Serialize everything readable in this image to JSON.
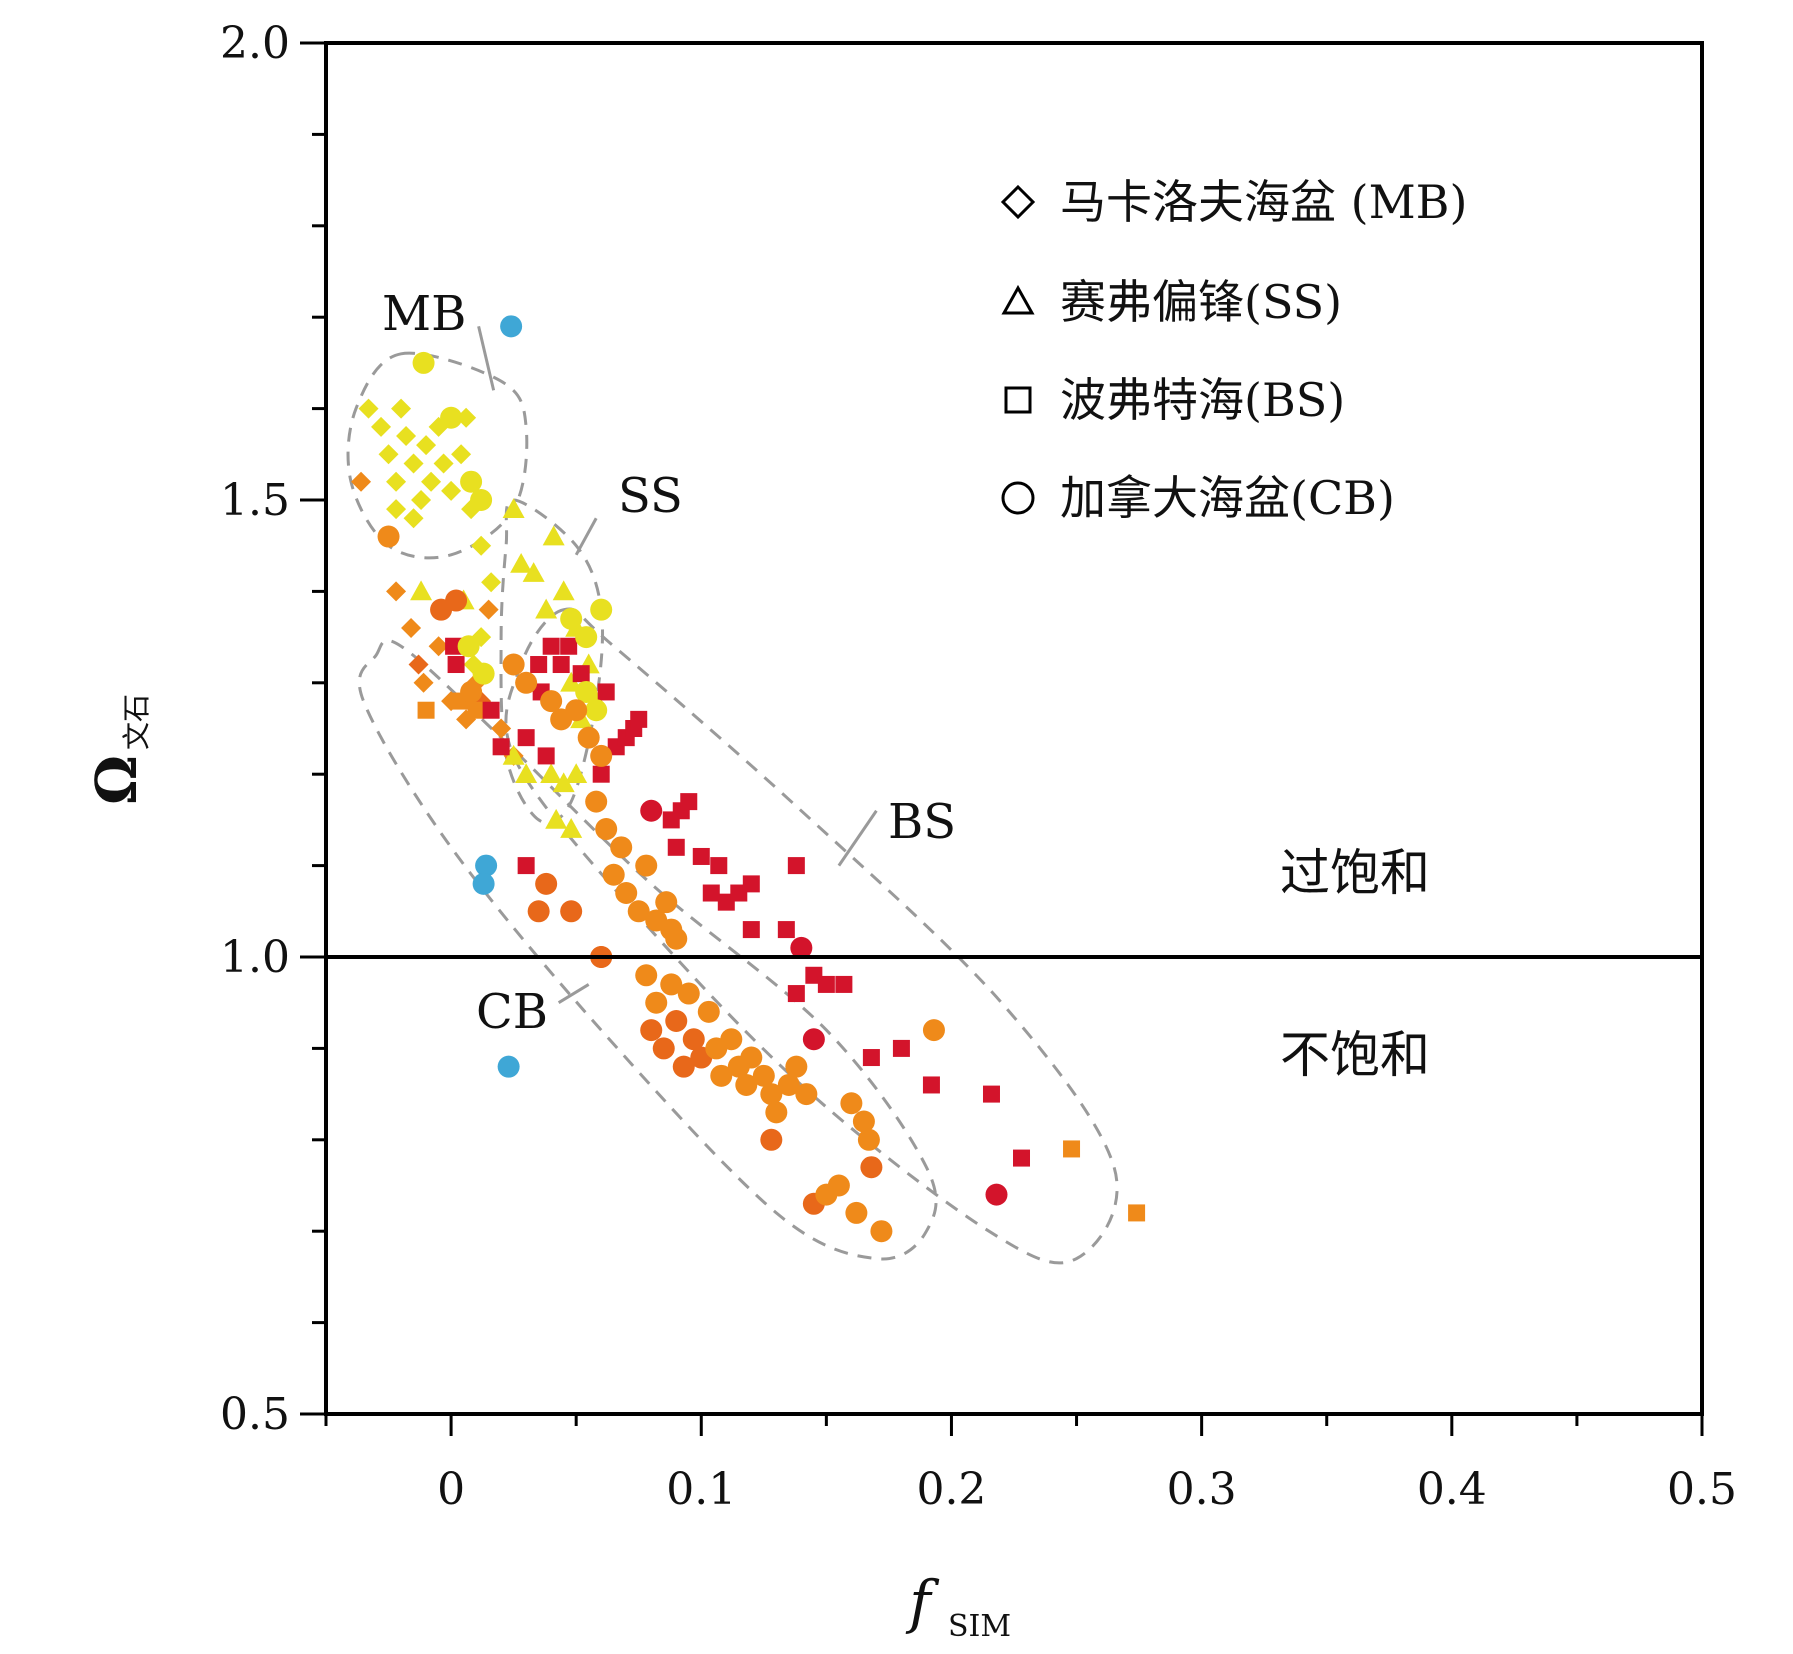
{
  "chart_data": {
    "type": "scatter",
    "xlabel": "f",
    "xlabel_sub": "SIM",
    "ylabel": "Ω",
    "ylabel_sub": "文石",
    "xlim": [
      -0.05,
      0.5
    ],
    "ylim": [
      0.5,
      2.0
    ],
    "xticks": [
      "0",
      "0.1",
      "0.2",
      "0.3",
      "0.4",
      "0.5"
    ],
    "xtick_values": [
      0,
      0.1,
      0.2,
      0.3,
      0.4,
      0.5
    ],
    "yticks": [
      "0.5",
      "1.0",
      "1.5",
      "2.0"
    ],
    "ytick_values": [
      0.5,
      1.0,
      1.5,
      2.0
    ],
    "reference_line": 1.0,
    "region_labels": {
      "above": "过饱和",
      "below": "不饱和"
    },
    "group_labels": {
      "MB": "MB",
      "SS": "SS",
      "BS": "BS",
      "CB": "CB"
    },
    "legend": [
      {
        "marker": "diamond",
        "label": "马卡洛夫海盆 (MB)"
      },
      {
        "marker": "triangle",
        "label": "赛弗偏锋(SS)"
      },
      {
        "marker": "square",
        "label": "波弗特海(BS)"
      },
      {
        "marker": "circle",
        "label": "加拿大海盆(CB)"
      }
    ],
    "colors": {
      "yellow": "#e8e020",
      "light_orange": "#f5a623",
      "orange": "#ef8a1a",
      "dark_orange": "#e8681a",
      "red": "#d3142b",
      "blue": "#3fa7d6"
    },
    "series": [
      {
        "name": "MB",
        "marker": "diamond",
        "points": [
          [
            -0.033,
            1.6,
            "yellow"
          ],
          [
            -0.028,
            1.58,
            "yellow"
          ],
          [
            -0.025,
            1.55,
            "yellow"
          ],
          [
            -0.022,
            1.52,
            "yellow"
          ],
          [
            -0.02,
            1.6,
            "yellow"
          ],
          [
            -0.018,
            1.57,
            "yellow"
          ],
          [
            -0.015,
            1.54,
            "yellow"
          ],
          [
            -0.012,
            1.5,
            "yellow"
          ],
          [
            -0.01,
            1.56,
            "yellow"
          ],
          [
            -0.008,
            1.52,
            "yellow"
          ],
          [
            -0.005,
            1.58,
            "yellow"
          ],
          [
            -0.003,
            1.54,
            "yellow"
          ],
          [
            0.0,
            1.51,
            "yellow"
          ],
          [
            0.004,
            1.55,
            "yellow"
          ],
          [
            -0.022,
            1.49,
            "yellow"
          ],
          [
            -0.015,
            1.48,
            "yellow"
          ],
          [
            0.006,
            1.59,
            "yellow"
          ],
          [
            0.008,
            1.49,
            "yellow"
          ],
          [
            0.012,
            1.45,
            "yellow"
          ],
          [
            0.016,
            1.41,
            "yellow"
          ],
          [
            -0.036,
            1.52,
            "orange"
          ],
          [
            -0.022,
            1.4,
            "orange"
          ],
          [
            -0.016,
            1.36,
            "orange"
          ],
          [
            -0.013,
            1.32,
            "dark_orange"
          ],
          [
            -0.011,
            1.3,
            "orange"
          ],
          [
            -0.005,
            1.34,
            "orange"
          ],
          [
            0.0,
            1.28,
            "orange"
          ],
          [
            0.006,
            1.26,
            "orange"
          ],
          [
            0.01,
            1.3,
            "orange"
          ],
          [
            0.015,
            1.38,
            "orange"
          ],
          [
            0.02,
            1.25,
            "orange"
          ],
          [
            0.025,
            1.22,
            "orange"
          ],
          [
            0.012,
            1.28,
            "dark_orange"
          ],
          [
            0.009,
            1.32,
            "yellow"
          ],
          [
            0.012,
            1.35,
            "yellow"
          ]
        ]
      },
      {
        "name": "SS",
        "marker": "triangle",
        "points": [
          [
            0.025,
            1.49,
            "yellow"
          ],
          [
            0.041,
            1.46,
            "yellow"
          ],
          [
            0.028,
            1.43,
            "yellow"
          ],
          [
            0.033,
            1.42,
            "yellow"
          ],
          [
            0.038,
            1.38,
            "yellow"
          ],
          [
            0.045,
            1.4,
            "yellow"
          ],
          [
            0.05,
            1.36,
            "yellow"
          ],
          [
            0.055,
            1.32,
            "yellow"
          ],
          [
            0.058,
            1.28,
            "yellow"
          ],
          [
            0.048,
            1.3,
            "yellow"
          ],
          [
            0.052,
            1.26,
            "yellow"
          ],
          [
            0.05,
            1.2,
            "yellow"
          ],
          [
            0.045,
            1.19,
            "yellow"
          ],
          [
            0.04,
            1.2,
            "yellow"
          ],
          [
            0.03,
            1.2,
            "yellow"
          ],
          [
            0.025,
            1.22,
            "yellow"
          ],
          [
            0.042,
            1.15,
            "yellow"
          ],
          [
            0.048,
            1.14,
            "yellow"
          ],
          [
            -0.012,
            1.4,
            "yellow"
          ],
          [
            0.005,
            1.39,
            "yellow"
          ]
        ]
      },
      {
        "name": "BS",
        "marker": "square",
        "points": [
          [
            -0.01,
            1.27,
            "orange"
          ],
          [
            0.004,
            1.28,
            "orange"
          ],
          [
            0.01,
            1.27,
            "orange"
          ],
          [
            0.002,
            1.32,
            "red"
          ],
          [
            0.001,
            1.34,
            "red"
          ],
          [
            0.016,
            1.27,
            "red"
          ],
          [
            0.02,
            1.23,
            "red"
          ],
          [
            0.03,
            1.24,
            "red"
          ],
          [
            0.03,
            1.1,
            "red"
          ],
          [
            0.035,
            1.32,
            "red"
          ],
          [
            0.036,
            1.29,
            "red"
          ],
          [
            0.038,
            1.22,
            "red"
          ],
          [
            0.04,
            1.34,
            "red"
          ],
          [
            0.044,
            1.32,
            "red"
          ],
          [
            0.047,
            1.34,
            "red"
          ],
          [
            0.052,
            1.31,
            "red"
          ],
          [
            0.06,
            1.2,
            "red"
          ],
          [
            0.062,
            1.29,
            "red"
          ],
          [
            0.066,
            1.23,
            "red"
          ],
          [
            0.07,
            1.24,
            "red"
          ],
          [
            0.073,
            1.25,
            "red"
          ],
          [
            0.075,
            1.26,
            "red"
          ],
          [
            0.088,
            1.15,
            "red"
          ],
          [
            0.09,
            1.12,
            "red"
          ],
          [
            0.092,
            1.16,
            "red"
          ],
          [
            0.095,
            1.17,
            "red"
          ],
          [
            0.1,
            1.11,
            "red"
          ],
          [
            0.104,
            1.07,
            "red"
          ],
          [
            0.107,
            1.1,
            "red"
          ],
          [
            0.11,
            1.06,
            "red"
          ],
          [
            0.115,
            1.07,
            "red"
          ],
          [
            0.12,
            1.03,
            "red"
          ],
          [
            0.12,
            1.08,
            "red"
          ],
          [
            0.134,
            1.03,
            "red"
          ],
          [
            0.138,
            1.1,
            "red"
          ],
          [
            0.138,
            0.96,
            "red"
          ],
          [
            0.145,
            0.98,
            "red"
          ],
          [
            0.15,
            0.97,
            "red"
          ],
          [
            0.157,
            0.97,
            "red"
          ],
          [
            0.168,
            0.89,
            "red"
          ],
          [
            0.18,
            0.9,
            "red"
          ],
          [
            0.192,
            0.86,
            "red"
          ],
          [
            0.216,
            0.85,
            "red"
          ],
          [
            0.228,
            0.78,
            "red"
          ],
          [
            0.248,
            0.79,
            "orange"
          ],
          [
            0.274,
            0.72,
            "orange"
          ]
        ]
      },
      {
        "name": "CB",
        "marker": "circle",
        "points": [
          [
            0.024,
            1.69,
            "blue"
          ],
          [
            0.014,
            1.1,
            "blue"
          ],
          [
            0.013,
            1.08,
            "blue"
          ],
          [
            0.023,
            0.88,
            "blue"
          ],
          [
            -0.011,
            1.65,
            "yellow"
          ],
          [
            0.0,
            1.59,
            "yellow"
          ],
          [
            0.008,
            1.52,
            "yellow"
          ],
          [
            0.012,
            1.5,
            "yellow"
          ],
          [
            0.054,
            1.35,
            "yellow"
          ],
          [
            0.06,
            1.38,
            "yellow"
          ],
          [
            0.048,
            1.37,
            "yellow"
          ],
          [
            0.054,
            1.29,
            "yellow"
          ],
          [
            0.058,
            1.27,
            "yellow"
          ],
          [
            0.007,
            1.34,
            "yellow"
          ],
          [
            0.013,
            1.31,
            "yellow"
          ],
          [
            -0.025,
            1.46,
            "orange"
          ],
          [
            0.002,
            1.39,
            "dark_orange"
          ],
          [
            -0.004,
            1.38,
            "dark_orange"
          ],
          [
            0.008,
            1.29,
            "orange"
          ],
          [
            0.025,
            1.32,
            "orange"
          ],
          [
            0.03,
            1.3,
            "orange"
          ],
          [
            0.04,
            1.28,
            "orange"
          ],
          [
            0.044,
            1.26,
            "orange"
          ],
          [
            0.05,
            1.27,
            "orange"
          ],
          [
            0.055,
            1.24,
            "orange"
          ],
          [
            0.06,
            1.22,
            "orange"
          ],
          [
            0.058,
            1.17,
            "orange"
          ],
          [
            0.062,
            1.14,
            "orange"
          ],
          [
            0.068,
            1.12,
            "orange"
          ],
          [
            0.065,
            1.09,
            "orange"
          ],
          [
            0.07,
            1.07,
            "orange"
          ],
          [
            0.075,
            1.05,
            "orange"
          ],
          [
            0.078,
            1.1,
            "orange"
          ],
          [
            0.082,
            1.04,
            "orange"
          ],
          [
            0.086,
            1.06,
            "orange"
          ],
          [
            0.088,
            1.03,
            "orange"
          ],
          [
            0.09,
            1.02,
            "orange"
          ],
          [
            0.038,
            1.08,
            "dark_orange"
          ],
          [
            0.035,
            1.05,
            "dark_orange"
          ],
          [
            0.048,
            1.05,
            "dark_orange"
          ],
          [
            0.06,
            1.0,
            "dark_orange"
          ],
          [
            0.078,
            0.98,
            "orange"
          ],
          [
            0.082,
            0.95,
            "orange"
          ],
          [
            0.088,
            0.97,
            "orange"
          ],
          [
            0.095,
            0.96,
            "orange"
          ],
          [
            0.08,
            0.92,
            "dark_orange"
          ],
          [
            0.085,
            0.9,
            "dark_orange"
          ],
          [
            0.09,
            0.93,
            "dark_orange"
          ],
          [
            0.093,
            0.88,
            "dark_orange"
          ],
          [
            0.097,
            0.91,
            "dark_orange"
          ],
          [
            0.1,
            0.89,
            "dark_orange"
          ],
          [
            0.103,
            0.94,
            "orange"
          ],
          [
            0.106,
            0.9,
            "orange"
          ],
          [
            0.108,
            0.87,
            "orange"
          ],
          [
            0.112,
            0.91,
            "orange"
          ],
          [
            0.115,
            0.88,
            "orange"
          ],
          [
            0.118,
            0.86,
            "orange"
          ],
          [
            0.12,
            0.89,
            "orange"
          ],
          [
            0.125,
            0.87,
            "orange"
          ],
          [
            0.128,
            0.85,
            "orange"
          ],
          [
            0.13,
            0.83,
            "orange"
          ],
          [
            0.135,
            0.86,
            "orange"
          ],
          [
            0.138,
            0.88,
            "orange"
          ],
          [
            0.142,
            0.85,
            "orange"
          ],
          [
            0.128,
            0.8,
            "dark_orange"
          ],
          [
            0.145,
            0.73,
            "dark_orange"
          ],
          [
            0.15,
            0.74,
            "orange"
          ],
          [
            0.155,
            0.75,
            "orange"
          ],
          [
            0.16,
            0.84,
            "orange"
          ],
          [
            0.165,
            0.82,
            "orange"
          ],
          [
            0.167,
            0.8,
            "orange"
          ],
          [
            0.168,
            0.77,
            "dark_orange"
          ],
          [
            0.162,
            0.72,
            "orange"
          ],
          [
            0.172,
            0.7,
            "orange"
          ],
          [
            0.193,
            0.92,
            "orange"
          ],
          [
            0.14,
            1.01,
            "red"
          ],
          [
            0.145,
            0.91,
            "red"
          ],
          [
            0.08,
            1.16,
            "red"
          ],
          [
            0.218,
            0.74,
            "red"
          ],
          [
            0.06,
            1.0,
            "dark_orange"
          ]
        ]
      }
    ]
  }
}
